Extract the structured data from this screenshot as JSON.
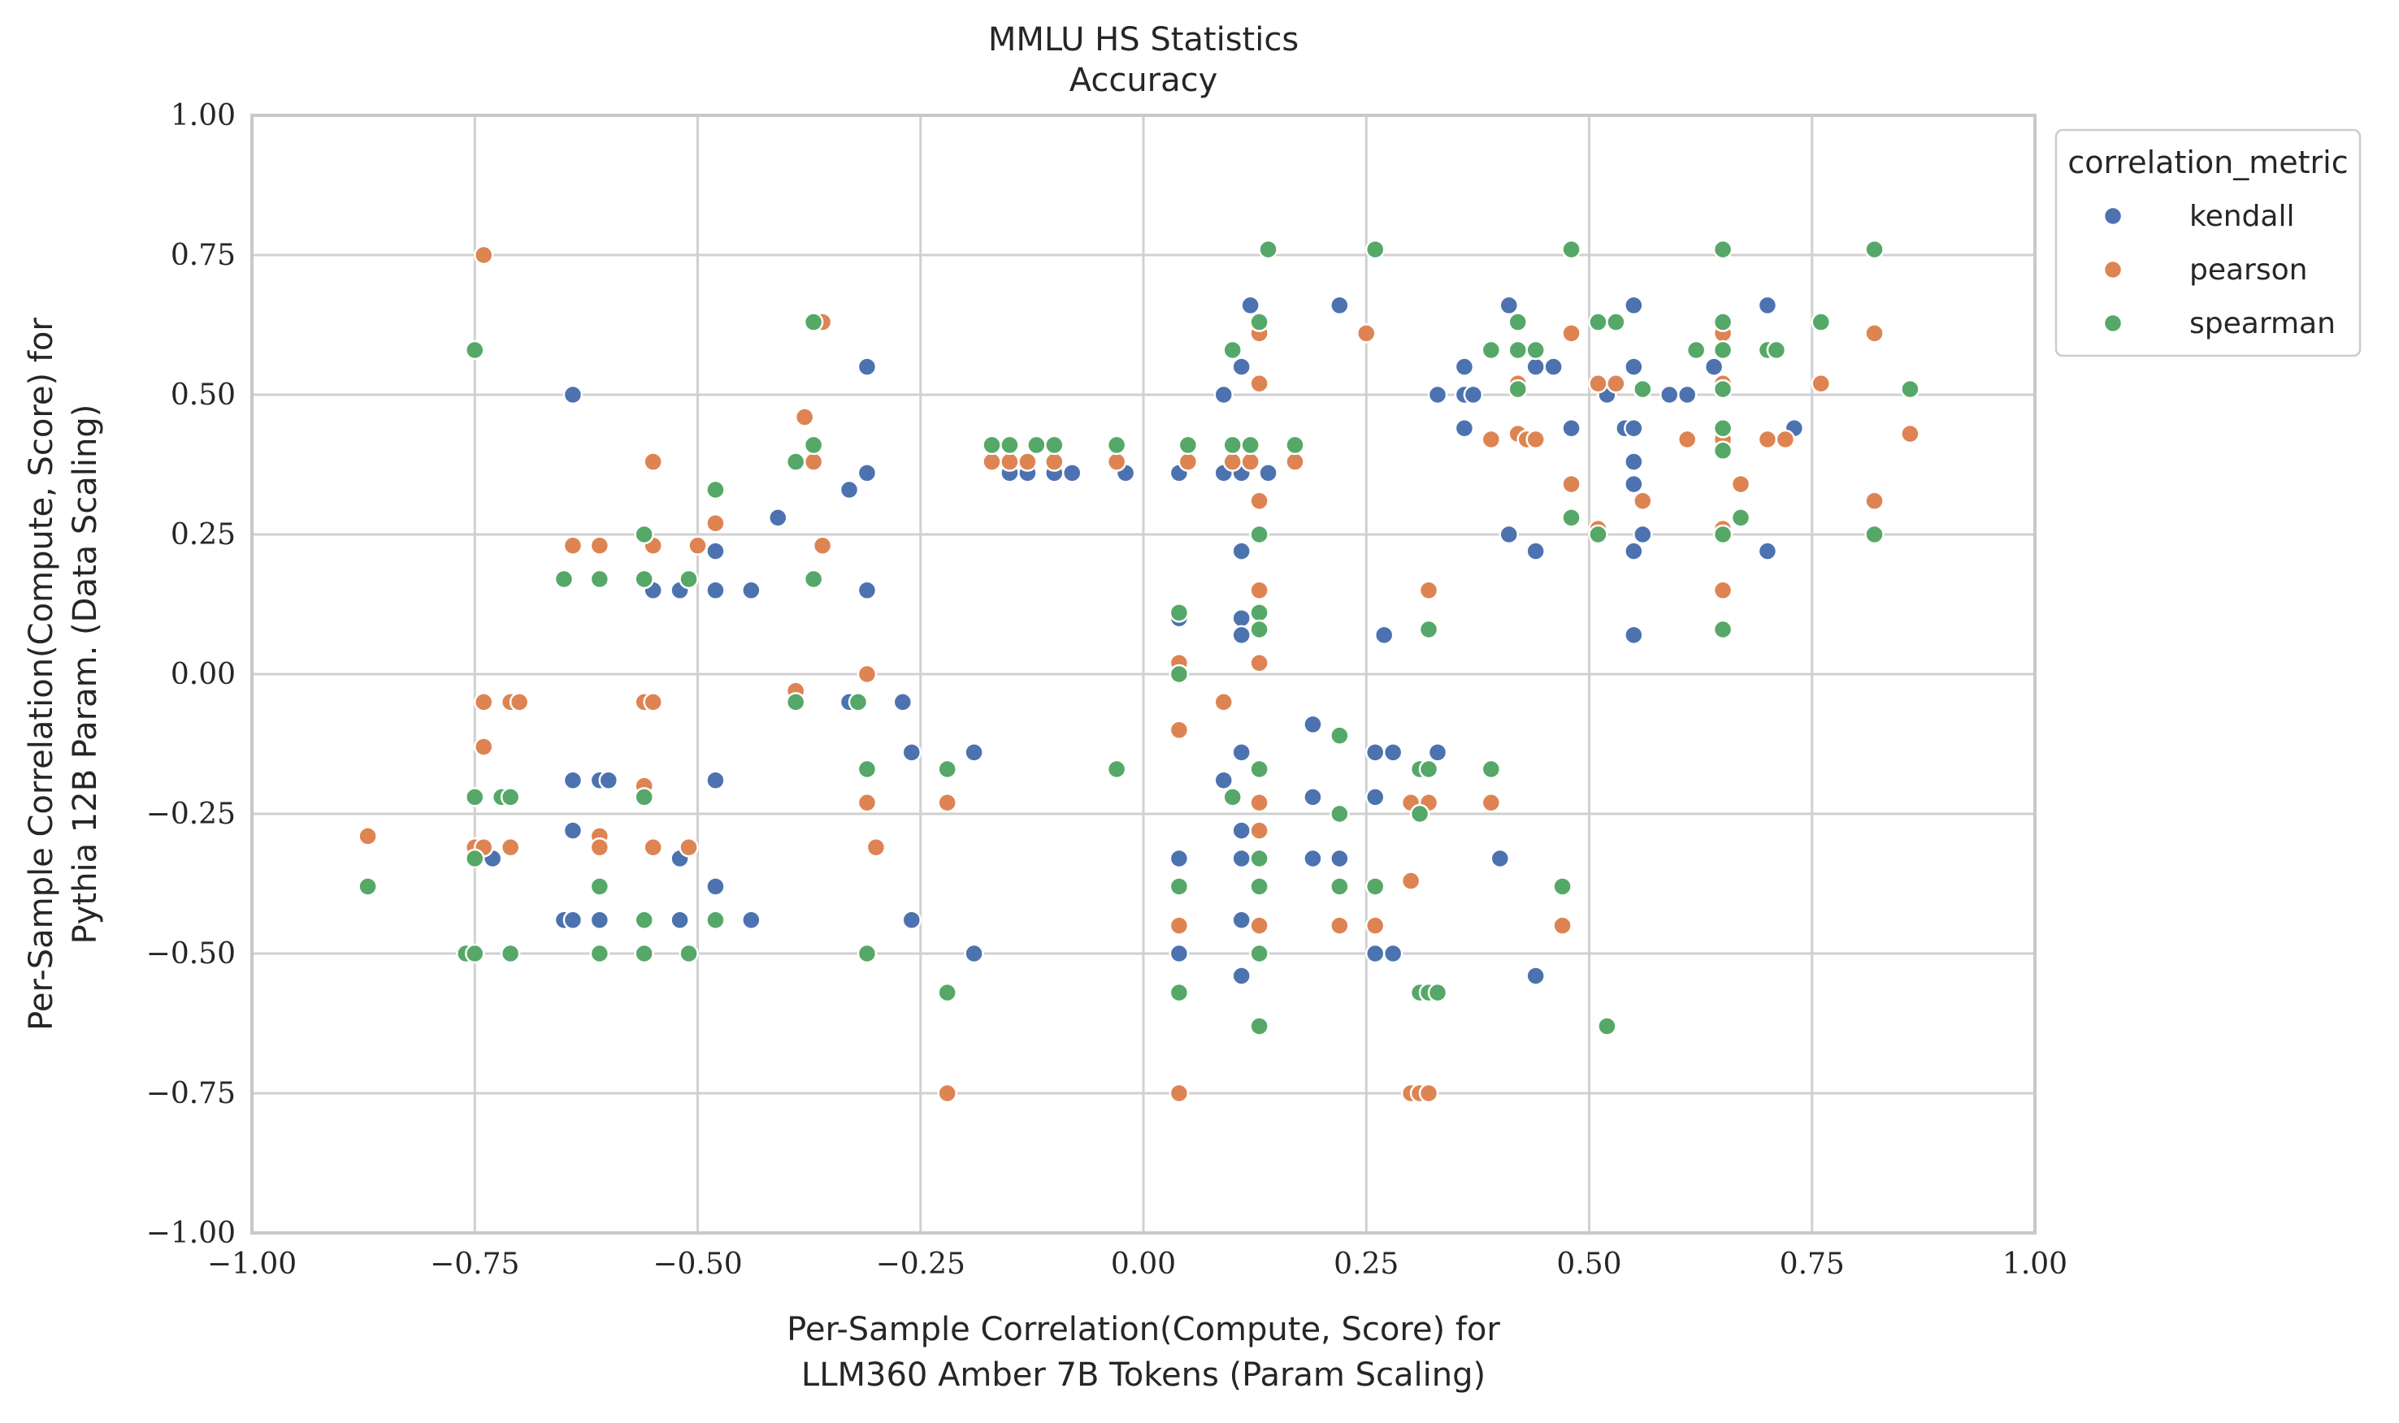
{
  "chart_data": {
    "type": "scatter",
    "title": "MMLU HS Statistics",
    "subtitle": "Accuracy",
    "xlabel_line1": "Per-Sample Correlation(Compute, Score) for",
    "xlabel_line2": "LLM360 Amber 7B Tokens (Param Scaling)",
    "ylabel_line1": "Per-Sample Correlation(Compute, Score) for",
    "ylabel_line2": "Pythia 12B Param. (Data Scaling)",
    "xlim": [
      -1.0,
      1.0
    ],
    "ylim": [
      -1.0,
      1.0
    ],
    "xticks": [
      -1.0,
      -0.75,
      -0.5,
      -0.25,
      0.0,
      0.25,
      0.5,
      0.75,
      1.0
    ],
    "yticks": [
      -1.0,
      -0.75,
      -0.5,
      -0.25,
      0.0,
      0.25,
      0.5,
      0.75,
      1.0
    ],
    "xtick_labels": [
      "−1.00",
      "−0.75",
      "−0.50",
      "−0.25",
      "0.00",
      "0.25",
      "0.50",
      "0.75",
      "1.00"
    ],
    "ytick_labels": [
      "−1.00",
      "−0.75",
      "−0.50",
      "−0.25",
      "0.00",
      "0.25",
      "0.50",
      "0.75",
      "1.00"
    ],
    "grid": true,
    "legend": {
      "title": "correlation_metric",
      "placement": "upper-right-outside"
    },
    "series": [
      {
        "name": "kendall",
        "color": "#4c72b0",
        "points": [
          [
            -0.64,
            0.5
          ],
          [
            -0.31,
            0.55
          ],
          [
            -0.33,
            0.33
          ],
          [
            -0.31,
            0.36
          ],
          [
            -0.41,
            0.28
          ],
          [
            -0.55,
            0.15
          ],
          [
            -0.52,
            0.15
          ],
          [
            -0.48,
            0.22
          ],
          [
            -0.48,
            0.15
          ],
          [
            -0.44,
            0.15
          ],
          [
            -0.31,
            0.15
          ],
          [
            -0.33,
            -0.05
          ],
          [
            -0.27,
            -0.05
          ],
          [
            -0.26,
            -0.14
          ],
          [
            -0.19,
            -0.14
          ],
          [
            -0.64,
            -0.19
          ],
          [
            -0.61,
            -0.19
          ],
          [
            -0.6,
            -0.19
          ],
          [
            -0.48,
            -0.19
          ],
          [
            -0.64,
            -0.28
          ],
          [
            -0.73,
            -0.33
          ],
          [
            -0.52,
            -0.33
          ],
          [
            -0.48,
            -0.38
          ],
          [
            -0.65,
            -0.44
          ],
          [
            -0.64,
            -0.44
          ],
          [
            -0.61,
            -0.44
          ],
          [
            -0.52,
            -0.44
          ],
          [
            -0.48,
            -0.44
          ],
          [
            -0.44,
            -0.44
          ],
          [
            -0.26,
            -0.44
          ],
          [
            -0.19,
            -0.5
          ],
          [
            -0.15,
            0.36
          ],
          [
            -0.13,
            0.36
          ],
          [
            -0.1,
            0.36
          ],
          [
            -0.08,
            0.36
          ],
          [
            -0.02,
            0.36
          ],
          [
            0.04,
            0.36
          ],
          [
            0.09,
            0.36
          ],
          [
            0.11,
            0.36
          ],
          [
            0.14,
            0.36
          ],
          [
            0.09,
            0.5
          ],
          [
            0.11,
            0.55
          ],
          [
            0.12,
            0.66
          ],
          [
            0.22,
            0.66
          ],
          [
            0.11,
            0.22
          ],
          [
            0.04,
            0.1
          ],
          [
            0.11,
            0.1
          ],
          [
            0.11,
            0.07
          ],
          [
            0.27,
            0.07
          ],
          [
            0.04,
            0.0
          ],
          [
            0.19,
            -0.09
          ],
          [
            0.11,
            -0.14
          ],
          [
            0.26,
            -0.14
          ],
          [
            0.28,
            -0.14
          ],
          [
            0.33,
            -0.14
          ],
          [
            0.09,
            -0.19
          ],
          [
            0.19,
            -0.22
          ],
          [
            0.26,
            -0.22
          ],
          [
            0.11,
            -0.28
          ],
          [
            0.04,
            -0.33
          ],
          [
            0.11,
            -0.33
          ],
          [
            0.19,
            -0.33
          ],
          [
            0.22,
            -0.33
          ],
          [
            0.4,
            -0.33
          ],
          [
            0.11,
            -0.44
          ],
          [
            0.04,
            -0.5
          ],
          [
            0.26,
            -0.5
          ],
          [
            0.28,
            -0.5
          ],
          [
            0.11,
            -0.54
          ],
          [
            0.44,
            -0.54
          ],
          [
            0.41,
            0.66
          ],
          [
            0.55,
            0.66
          ],
          [
            0.36,
            0.55
          ],
          [
            0.44,
            0.55
          ],
          [
            0.46,
            0.55
          ],
          [
            0.55,
            0.55
          ],
          [
            0.33,
            0.5
          ],
          [
            0.36,
            0.5
          ],
          [
            0.37,
            0.5
          ],
          [
            0.52,
            0.5
          ],
          [
            0.59,
            0.5
          ],
          [
            0.61,
            0.5
          ],
          [
            0.64,
            0.55
          ],
          [
            0.36,
            0.44
          ],
          [
            0.48,
            0.44
          ],
          [
            0.54,
            0.44
          ],
          [
            0.55,
            0.44
          ],
          [
            0.73,
            0.44
          ],
          [
            0.55,
            0.38
          ],
          [
            0.55,
            0.34
          ],
          [
            0.41,
            0.25
          ],
          [
            0.56,
            0.25
          ],
          [
            0.44,
            0.22
          ],
          [
            0.55,
            0.22
          ],
          [
            0.7,
            0.22
          ],
          [
            0.55,
            0.07
          ],
          [
            0.7,
            0.66
          ]
        ]
      },
      {
        "name": "pearson",
        "color": "#dd8452",
        "points": [
          [
            -0.74,
            0.75
          ],
          [
            -0.36,
            0.63
          ],
          [
            -0.38,
            0.46
          ],
          [
            -0.37,
            0.38
          ],
          [
            -0.55,
            0.38
          ],
          [
            -0.48,
            0.27
          ],
          [
            -0.36,
            0.23
          ],
          [
            -0.64,
            0.23
          ],
          [
            -0.61,
            0.23
          ],
          [
            -0.55,
            0.23
          ],
          [
            -0.5,
            0.23
          ],
          [
            -0.39,
            -0.03
          ],
          [
            -0.31,
            0.0
          ],
          [
            -0.74,
            -0.05
          ],
          [
            -0.71,
            -0.05
          ],
          [
            -0.7,
            -0.05
          ],
          [
            -0.56,
            -0.05
          ],
          [
            -0.55,
            -0.05
          ],
          [
            -0.74,
            -0.13
          ],
          [
            -0.56,
            -0.2
          ],
          [
            -0.61,
            -0.29
          ],
          [
            -0.31,
            -0.23
          ],
          [
            -0.22,
            -0.23
          ],
          [
            -0.3,
            -0.31
          ],
          [
            -0.87,
            -0.29
          ],
          [
            -0.75,
            -0.31
          ],
          [
            -0.74,
            -0.31
          ],
          [
            -0.71,
            -0.31
          ],
          [
            -0.61,
            -0.31
          ],
          [
            -0.55,
            -0.31
          ],
          [
            -0.51,
            -0.31
          ],
          [
            -0.22,
            -0.75
          ],
          [
            -0.17,
            0.38
          ],
          [
            -0.15,
            0.38
          ],
          [
            -0.13,
            0.38
          ],
          [
            -0.1,
            0.38
          ],
          [
            -0.03,
            0.38
          ],
          [
            0.05,
            0.38
          ],
          [
            0.1,
            0.38
          ],
          [
            0.12,
            0.38
          ],
          [
            0.17,
            0.38
          ],
          [
            0.13,
            0.61
          ],
          [
            0.25,
            0.61
          ],
          [
            0.13,
            0.52
          ],
          [
            0.13,
            0.31
          ],
          [
            0.13,
            0.25
          ],
          [
            0.13,
            0.15
          ],
          [
            0.13,
            0.02
          ],
          [
            0.04,
            0.02
          ],
          [
            0.09,
            -0.05
          ],
          [
            0.04,
            -0.1
          ],
          [
            0.13,
            -0.23
          ],
          [
            0.3,
            -0.23
          ],
          [
            0.32,
            -0.23
          ],
          [
            0.13,
            -0.28
          ],
          [
            0.04,
            -0.45
          ],
          [
            0.13,
            -0.45
          ],
          [
            0.22,
            -0.45
          ],
          [
            0.26,
            -0.45
          ],
          [
            0.3,
            -0.37
          ],
          [
            0.04,
            -0.75
          ],
          [
            0.3,
            -0.75
          ],
          [
            0.31,
            -0.75
          ],
          [
            0.32,
            -0.75
          ],
          [
            0.32,
            0.15
          ],
          [
            0.39,
            -0.23
          ],
          [
            0.47,
            -0.45
          ],
          [
            0.48,
            0.61
          ],
          [
            0.65,
            0.61
          ],
          [
            0.82,
            0.61
          ],
          [
            0.42,
            0.52
          ],
          [
            0.51,
            0.52
          ],
          [
            0.53,
            0.52
          ],
          [
            0.65,
            0.52
          ],
          [
            0.76,
            0.52
          ],
          [
            0.39,
            0.42
          ],
          [
            0.42,
            0.43
          ],
          [
            0.43,
            0.42
          ],
          [
            0.44,
            0.42
          ],
          [
            0.61,
            0.42
          ],
          [
            0.65,
            0.42
          ],
          [
            0.7,
            0.42
          ],
          [
            0.72,
            0.42
          ],
          [
            0.86,
            0.43
          ],
          [
            0.48,
            0.34
          ],
          [
            0.56,
            0.31
          ],
          [
            0.67,
            0.34
          ],
          [
            0.82,
            0.31
          ],
          [
            0.51,
            0.26
          ],
          [
            0.65,
            0.26
          ],
          [
            0.65,
            0.15
          ]
        ]
      },
      {
        "name": "spearman",
        "color": "#55a868",
        "points": [
          [
            -0.75,
            0.58
          ],
          [
            -0.37,
            0.63
          ],
          [
            -0.37,
            0.41
          ],
          [
            -0.39,
            0.38
          ],
          [
            -0.48,
            0.33
          ],
          [
            -0.56,
            0.25
          ],
          [
            -0.65,
            0.17
          ],
          [
            -0.61,
            0.17
          ],
          [
            -0.56,
            0.17
          ],
          [
            -0.51,
            0.17
          ],
          [
            -0.37,
            0.17
          ],
          [
            -0.39,
            -0.05
          ],
          [
            -0.32,
            -0.05
          ],
          [
            -0.31,
            -0.17
          ],
          [
            -0.22,
            -0.17
          ],
          [
            -0.75,
            -0.22
          ],
          [
            -0.72,
            -0.22
          ],
          [
            -0.71,
            -0.22
          ],
          [
            -0.56,
            -0.22
          ],
          [
            -0.75,
            -0.33
          ],
          [
            -0.87,
            -0.38
          ],
          [
            -0.61,
            -0.38
          ],
          [
            -0.56,
            -0.44
          ],
          [
            -0.48,
            -0.44
          ],
          [
            -0.76,
            -0.5
          ],
          [
            -0.75,
            -0.5
          ],
          [
            -0.71,
            -0.5
          ],
          [
            -0.61,
            -0.5
          ],
          [
            -0.56,
            -0.5
          ],
          [
            -0.51,
            -0.5
          ],
          [
            -0.31,
            -0.5
          ],
          [
            -0.22,
            -0.57
          ],
          [
            -0.17,
            0.41
          ],
          [
            -0.15,
            0.41
          ],
          [
            -0.12,
            0.41
          ],
          [
            -0.1,
            0.41
          ],
          [
            -0.03,
            0.41
          ],
          [
            0.05,
            0.41
          ],
          [
            0.1,
            0.41
          ],
          [
            0.12,
            0.41
          ],
          [
            0.17,
            0.41
          ],
          [
            0.14,
            0.76
          ],
          [
            0.26,
            0.76
          ],
          [
            0.1,
            0.58
          ],
          [
            0.13,
            0.63
          ],
          [
            0.13,
            0.25
          ],
          [
            0.13,
            0.11
          ],
          [
            0.13,
            0.08
          ],
          [
            0.04,
            0.11
          ],
          [
            0.04,
            0.0
          ],
          [
            0.22,
            -0.11
          ],
          [
            -0.03,
            -0.17
          ],
          [
            0.13,
            -0.17
          ],
          [
            0.1,
            -0.22
          ],
          [
            0.22,
            -0.25
          ],
          [
            0.13,
            -0.33
          ],
          [
            0.04,
            -0.38
          ],
          [
            0.13,
            -0.38
          ],
          [
            0.22,
            -0.38
          ],
          [
            0.26,
            -0.38
          ],
          [
            0.13,
            -0.5
          ],
          [
            0.04,
            -0.57
          ],
          [
            0.13,
            -0.63
          ],
          [
            0.31,
            -0.17
          ],
          [
            0.32,
            -0.17
          ],
          [
            0.31,
            -0.25
          ],
          [
            0.31,
            -0.57
          ],
          [
            0.32,
            -0.57
          ],
          [
            0.33,
            -0.57
          ],
          [
            0.32,
            0.08
          ],
          [
            0.39,
            -0.17
          ],
          [
            0.47,
            -0.38
          ],
          [
            0.52,
            -0.63
          ],
          [
            0.48,
            0.76
          ],
          [
            0.65,
            0.76
          ],
          [
            0.82,
            0.76
          ],
          [
            0.42,
            0.63
          ],
          [
            0.51,
            0.63
          ],
          [
            0.53,
            0.63
          ],
          [
            0.65,
            0.63
          ],
          [
            0.76,
            0.63
          ],
          [
            0.39,
            0.58
          ],
          [
            0.42,
            0.58
          ],
          [
            0.44,
            0.58
          ],
          [
            0.62,
            0.58
          ],
          [
            0.65,
            0.58
          ],
          [
            0.7,
            0.58
          ],
          [
            0.71,
            0.58
          ],
          [
            0.42,
            0.51
          ],
          [
            0.56,
            0.51
          ],
          [
            0.65,
            0.51
          ],
          [
            0.86,
            0.51
          ],
          [
            0.65,
            0.44
          ],
          [
            0.65,
            0.4
          ],
          [
            0.48,
            0.28
          ],
          [
            0.67,
            0.28
          ],
          [
            0.51,
            0.25
          ],
          [
            0.65,
            0.25
          ],
          [
            0.82,
            0.25
          ],
          [
            0.65,
            0.08
          ]
        ]
      }
    ]
  }
}
